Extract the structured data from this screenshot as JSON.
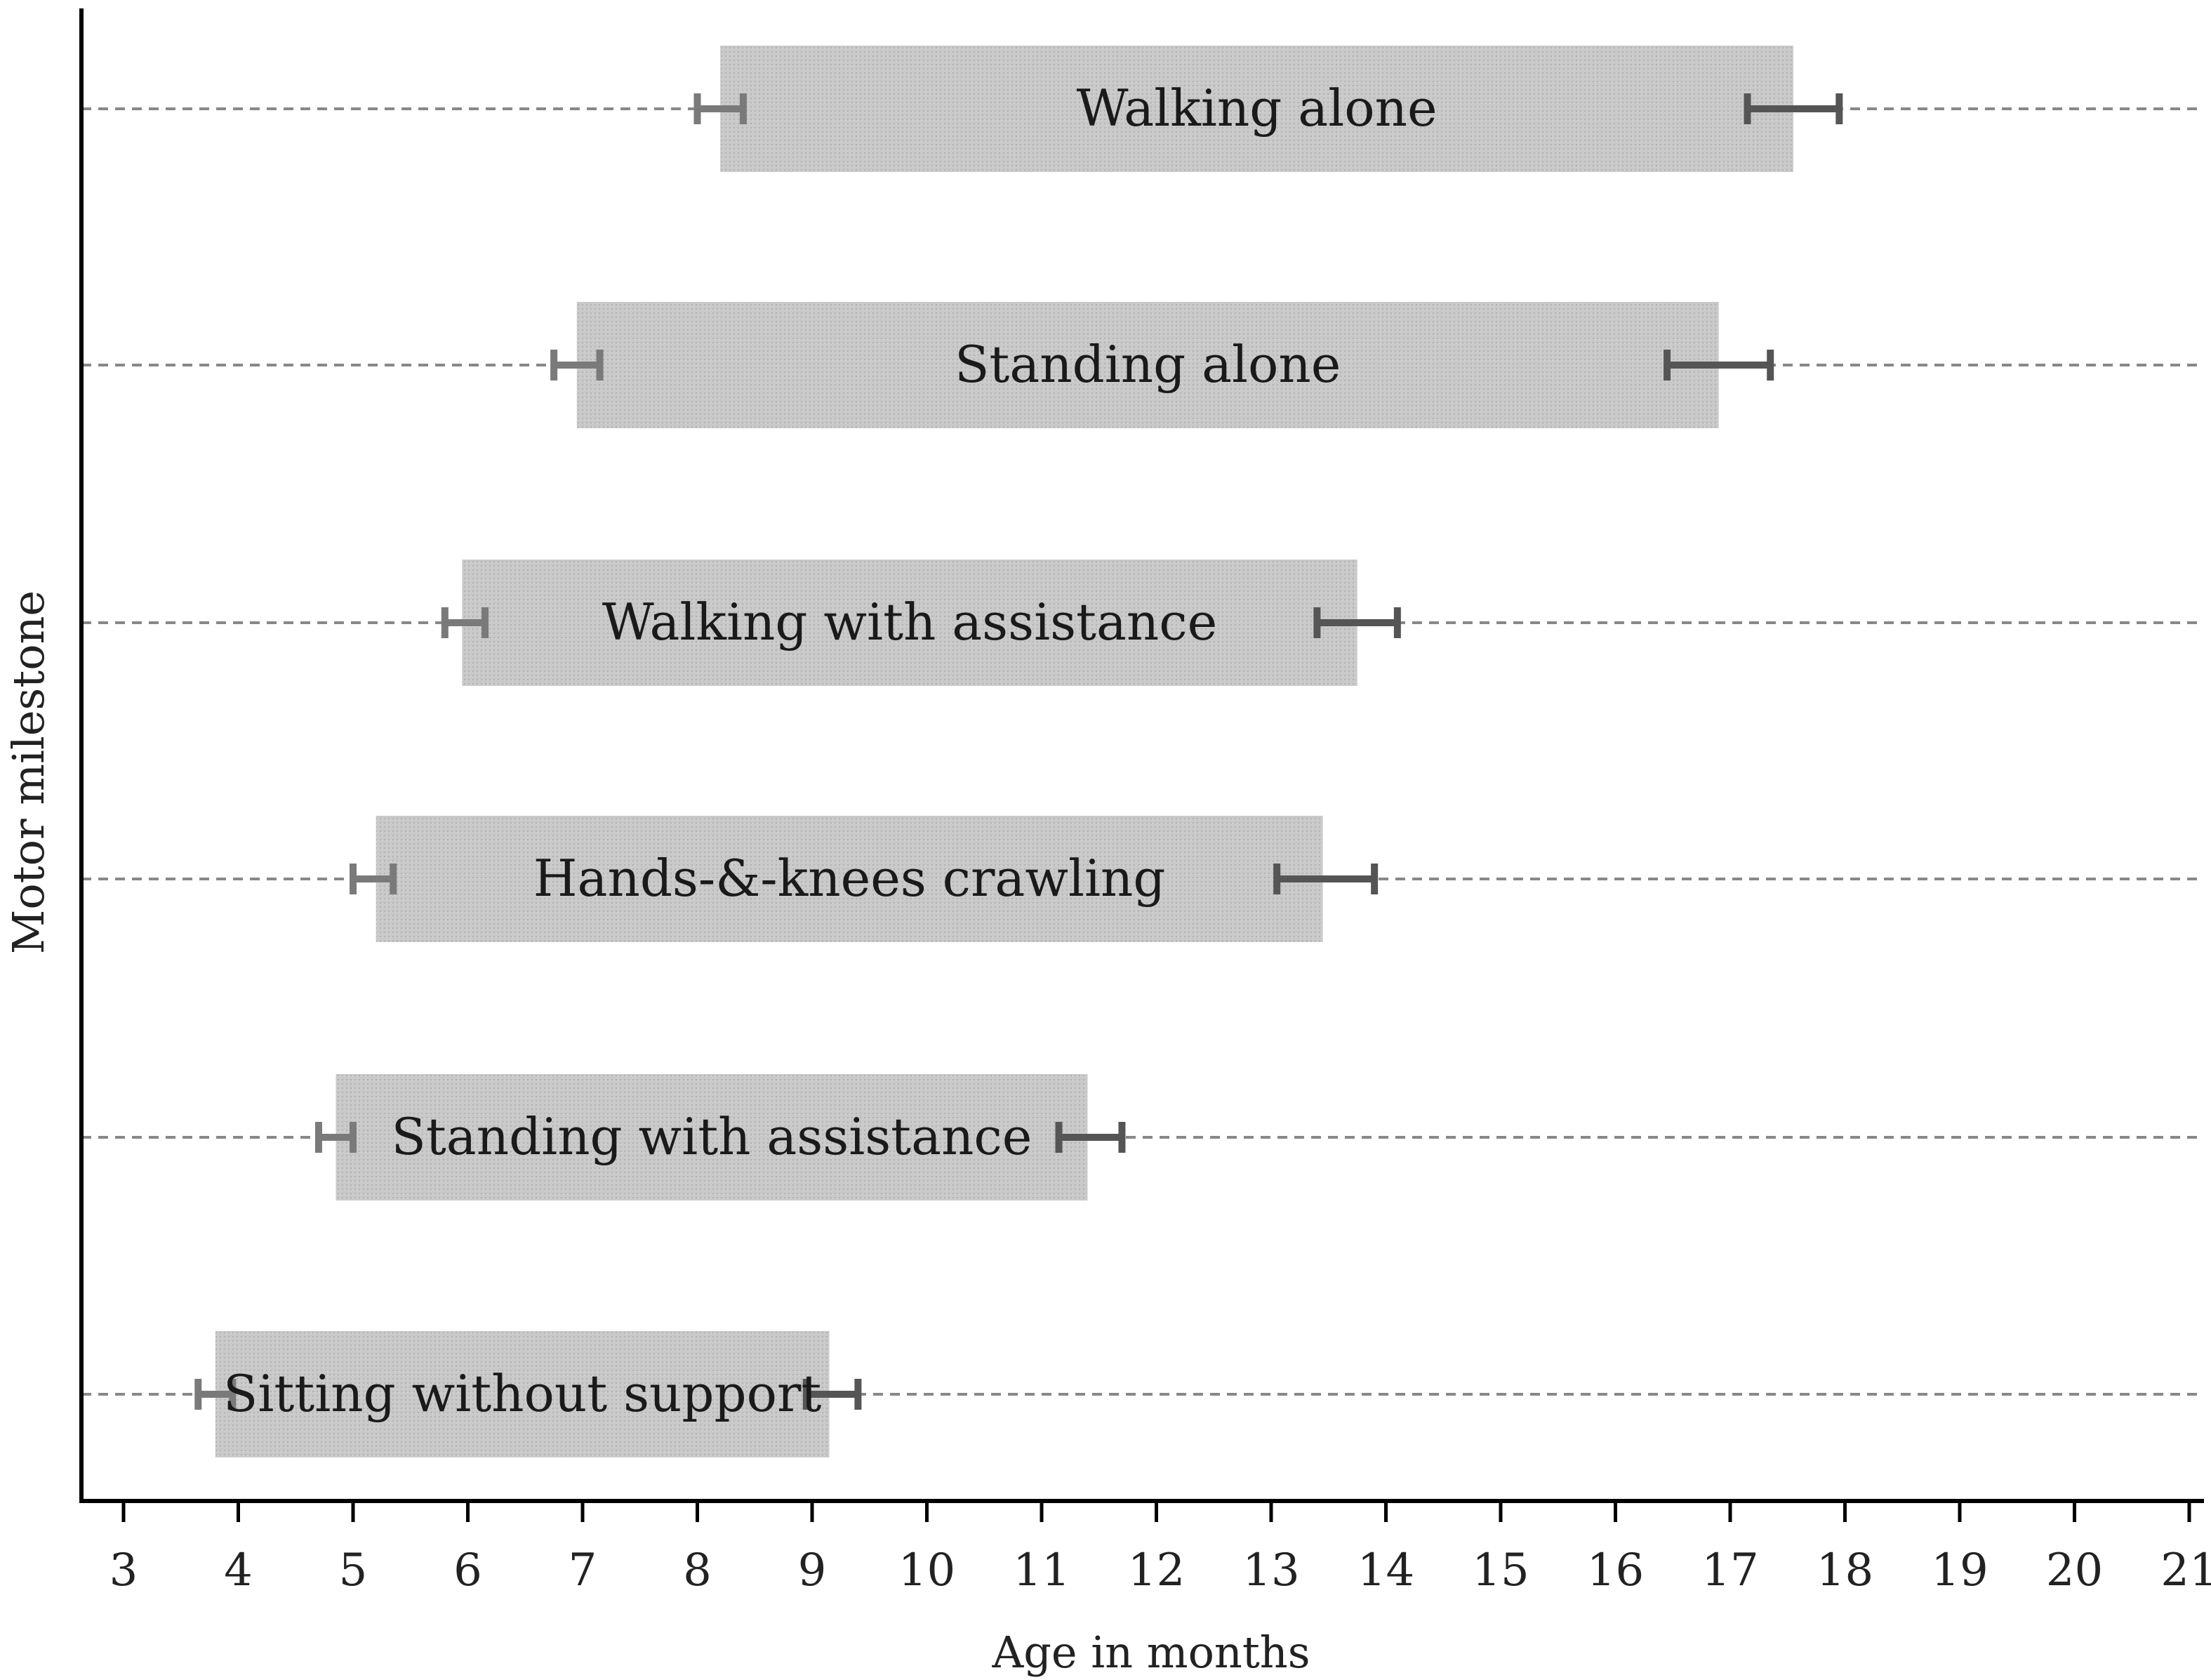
{
  "chart_data": {
    "type": "bar",
    "orientation": "horizontal",
    "xlabel": "Age in months",
    "ylabel": "Motor milestone",
    "xlim": [
      3,
      21
    ],
    "xticks": [
      3,
      4,
      5,
      6,
      7,
      8,
      9,
      10,
      11,
      12,
      13,
      14,
      15,
      16,
      17,
      18,
      19,
      20,
      21
    ],
    "grid": "horizontal dashed at each milestone",
    "colors": {
      "bar": "#c8c8c8",
      "whisker_start": "#7a7a7a",
      "whisker_end": "#555555",
      "grid": "#888888",
      "axis": "#000000"
    },
    "series": [
      {
        "name": "Sitting without support",
        "start": 3.8,
        "end": 9.15,
        "start_ci": [
          3.65,
          3.95
        ],
        "end_ci": [
          8.95,
          9.4
        ]
      },
      {
        "name": "Standing with assistance",
        "start": 4.85,
        "end": 11.4,
        "start_ci": [
          4.7,
          5.0
        ],
        "end_ci": [
          11.15,
          11.7
        ]
      },
      {
        "name": "Hands-&-knees crawling",
        "start": 5.2,
        "end": 13.45,
        "start_ci": [
          5.0,
          5.35
        ],
        "end_ci": [
          13.05,
          13.9
        ]
      },
      {
        "name": "Walking with assistance",
        "start": 5.95,
        "end": 13.75,
        "start_ci": [
          5.8,
          6.15
        ],
        "end_ci": [
          13.4,
          14.1
        ]
      },
      {
        "name": "Standing alone",
        "start": 6.95,
        "end": 16.9,
        "start_ci": [
          6.75,
          7.15
        ],
        "end_ci": [
          16.45,
          17.35
        ]
      },
      {
        "name": "Walking alone",
        "start": 8.2,
        "end": 17.55,
        "start_ci": [
          8.0,
          8.4
        ],
        "end_ci": [
          17.15,
          17.95
        ]
      }
    ]
  }
}
